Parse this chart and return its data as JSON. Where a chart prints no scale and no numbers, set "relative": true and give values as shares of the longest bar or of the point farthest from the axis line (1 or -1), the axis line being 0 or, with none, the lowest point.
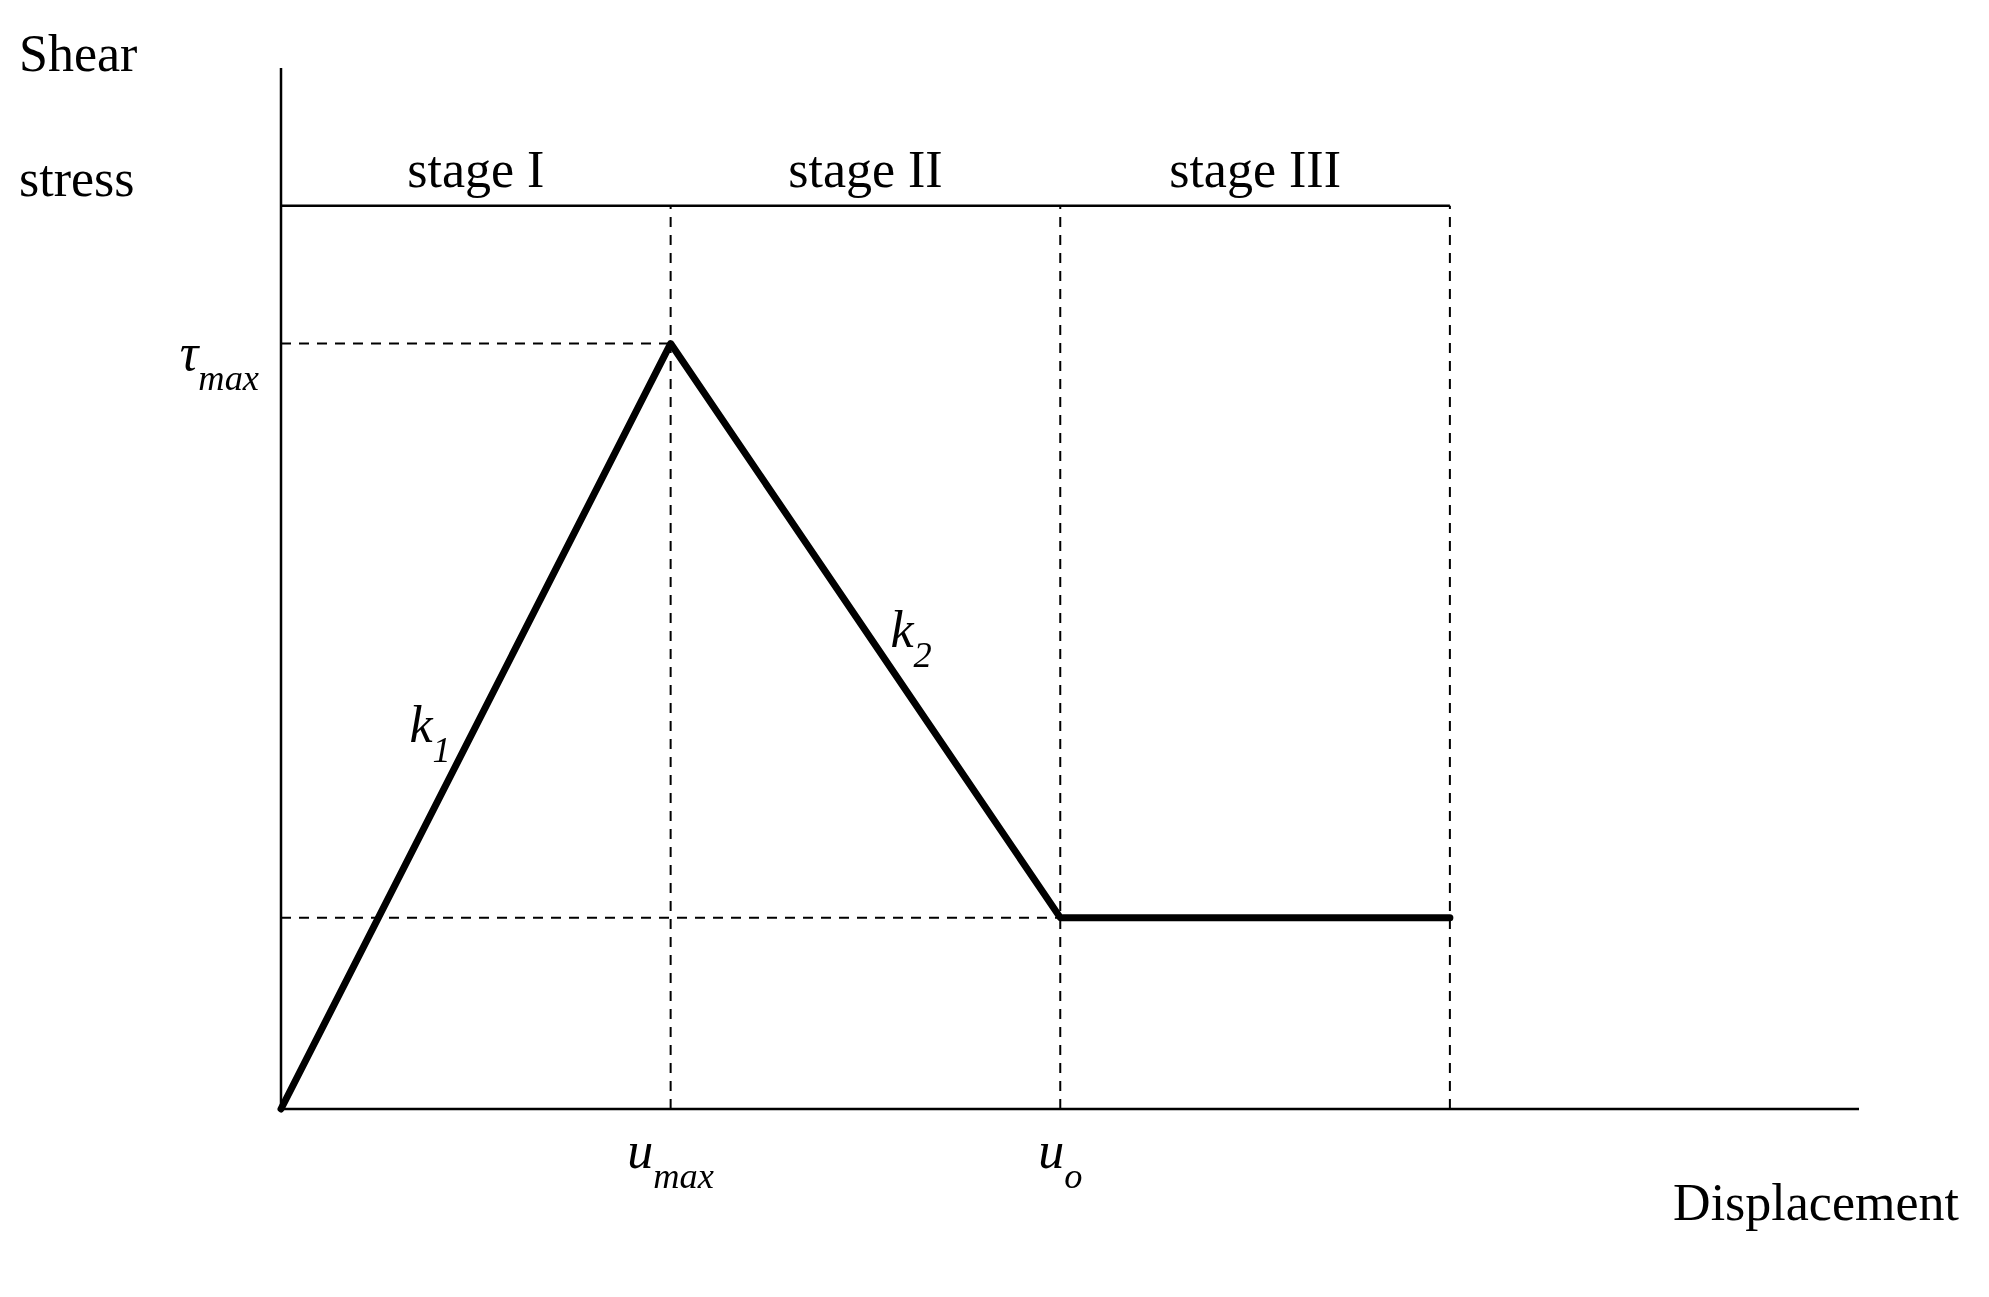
{
  "chart_data": {
    "type": "line",
    "relative": true,
    "xlabel": "Displacement",
    "ylabel": "Shear stress",
    "categories": [
      null,
      "u$_{max}$",
      "u$_{o}$",
      null
    ],
    "series": [
      {
        "color": "#000000",
        "values": [
          0,
          1,
          0.25,
          0.25
        ]
      }
    ],
    "ref_lines": [
      {
        "axis": "y",
        "value": 1,
        "label": "τ$_{max}$",
        "line_style": "dashed"
      },
      {
        "axis": "y",
        "value": 0.25,
        "label": null,
        "line_style": "dashed"
      }
    ],
    "annotations": [
      "stage I",
      "stage II",
      "stage III",
      "k$_{1}$",
      "k$_{2}$"
    ],
    "grid": "x",
    "marker": "none",
    "line_style": "solid"
  }
}
